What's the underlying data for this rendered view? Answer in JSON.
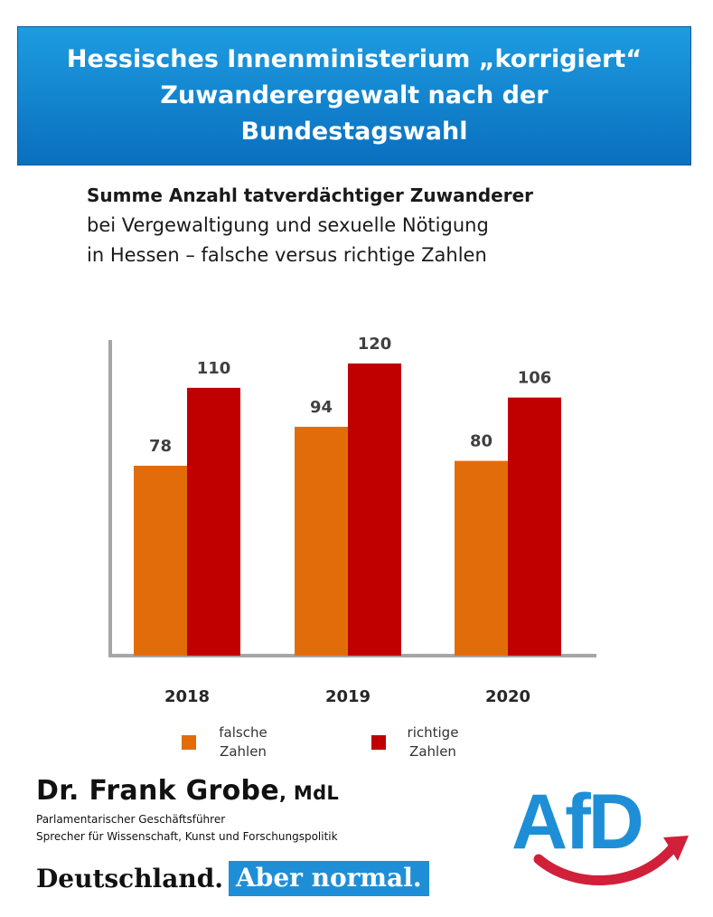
{
  "banner": {
    "lines": [
      "Hessisches Innenministerium „korrigiert“",
      "Zuwanderergewalt nach der",
      "Bundestagswahl"
    ]
  },
  "subtitle": {
    "line1": "Summe Anzahl tatverdächtiger Zuwanderer",
    "line2": "bei Vergewaltigung und sexuelle Nötigung",
    "line3": "in Hessen – falsche versus richtige Zahlen"
  },
  "chart_data": {
    "type": "bar",
    "categories": [
      "2018",
      "2019",
      "2020"
    ],
    "series": [
      {
        "name": "falsche Zahlen",
        "color": "#e36c0a",
        "values": [
          78,
          94,
          80
        ]
      },
      {
        "name": "richtige Zahlen",
        "color": "#c00000",
        "values": [
          110,
          120,
          106
        ]
      }
    ],
    "ylim": [
      0,
      130
    ],
    "grid": false,
    "legend": "bottom"
  },
  "legend": {
    "falsche_line1": "falsche",
    "falsche_line2": "Zahlen",
    "richtige_line1": "richtige",
    "richtige_line2": "Zahlen"
  },
  "speaker": {
    "name": "Dr. Frank Grobe",
    "suffix": ", MdL",
    "role1": "Parlamentarischer Geschäftsführer",
    "role2": "Sprecher für Wissenschaft, Kunst und Forschungspolitik"
  },
  "slogan": {
    "part1": "Deutschland.",
    "part2": "Aber normal."
  },
  "logo": {
    "text": "AfD",
    "colors": {
      "blue": "#1e8fd6",
      "red": "#d0203a"
    }
  }
}
